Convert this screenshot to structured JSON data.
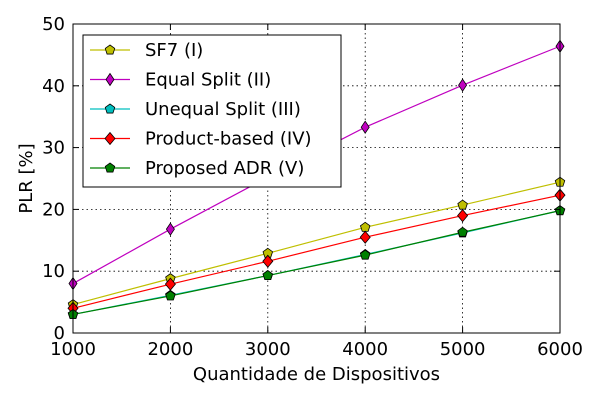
{
  "chart_data": {
    "type": "line",
    "title": "",
    "xlabel": "Quantidade de Dispositivos",
    "ylabel": "PLR [%]",
    "xlim": [
      1000,
      6000
    ],
    "ylim": [
      0,
      50
    ],
    "xticks": [
      1000,
      2000,
      3000,
      4000,
      5000,
      6000
    ],
    "yticks": [
      0,
      10,
      20,
      30,
      40,
      50
    ],
    "grid": true,
    "legend_position": "top-left",
    "x": [
      1000,
      2000,
      3000,
      4000,
      5000,
      6000
    ],
    "series": [
      {
        "name": "SF7 (I)",
        "color": "#bfbf00",
        "marker": "pentagon",
        "values": [
          4.6,
          8.8,
          12.9,
          17.1,
          20.7,
          24.4
        ]
      },
      {
        "name": "Equal Split (II)",
        "color": "#bf00bf",
        "marker": "thin-diamond",
        "values": [
          8.0,
          16.8,
          25.2,
          33.3,
          40.1,
          46.4
        ]
      },
      {
        "name": "Unequal Split (III)",
        "color": "#00bfbf",
        "marker": "pentagon",
        "values": [
          3.0,
          6.1,
          9.3,
          12.7,
          16.2,
          19.8
        ]
      },
      {
        "name": "Product-based (IV)",
        "color": "#ff0000",
        "marker": "diamond",
        "values": [
          4.0,
          7.9,
          11.6,
          15.5,
          19.0,
          22.3
        ]
      },
      {
        "name": "Proposed ADR (V)",
        "color": "#008000",
        "marker": "pentagon",
        "values": [
          3.0,
          6.0,
          9.3,
          12.6,
          16.3,
          19.8
        ]
      }
    ]
  }
}
